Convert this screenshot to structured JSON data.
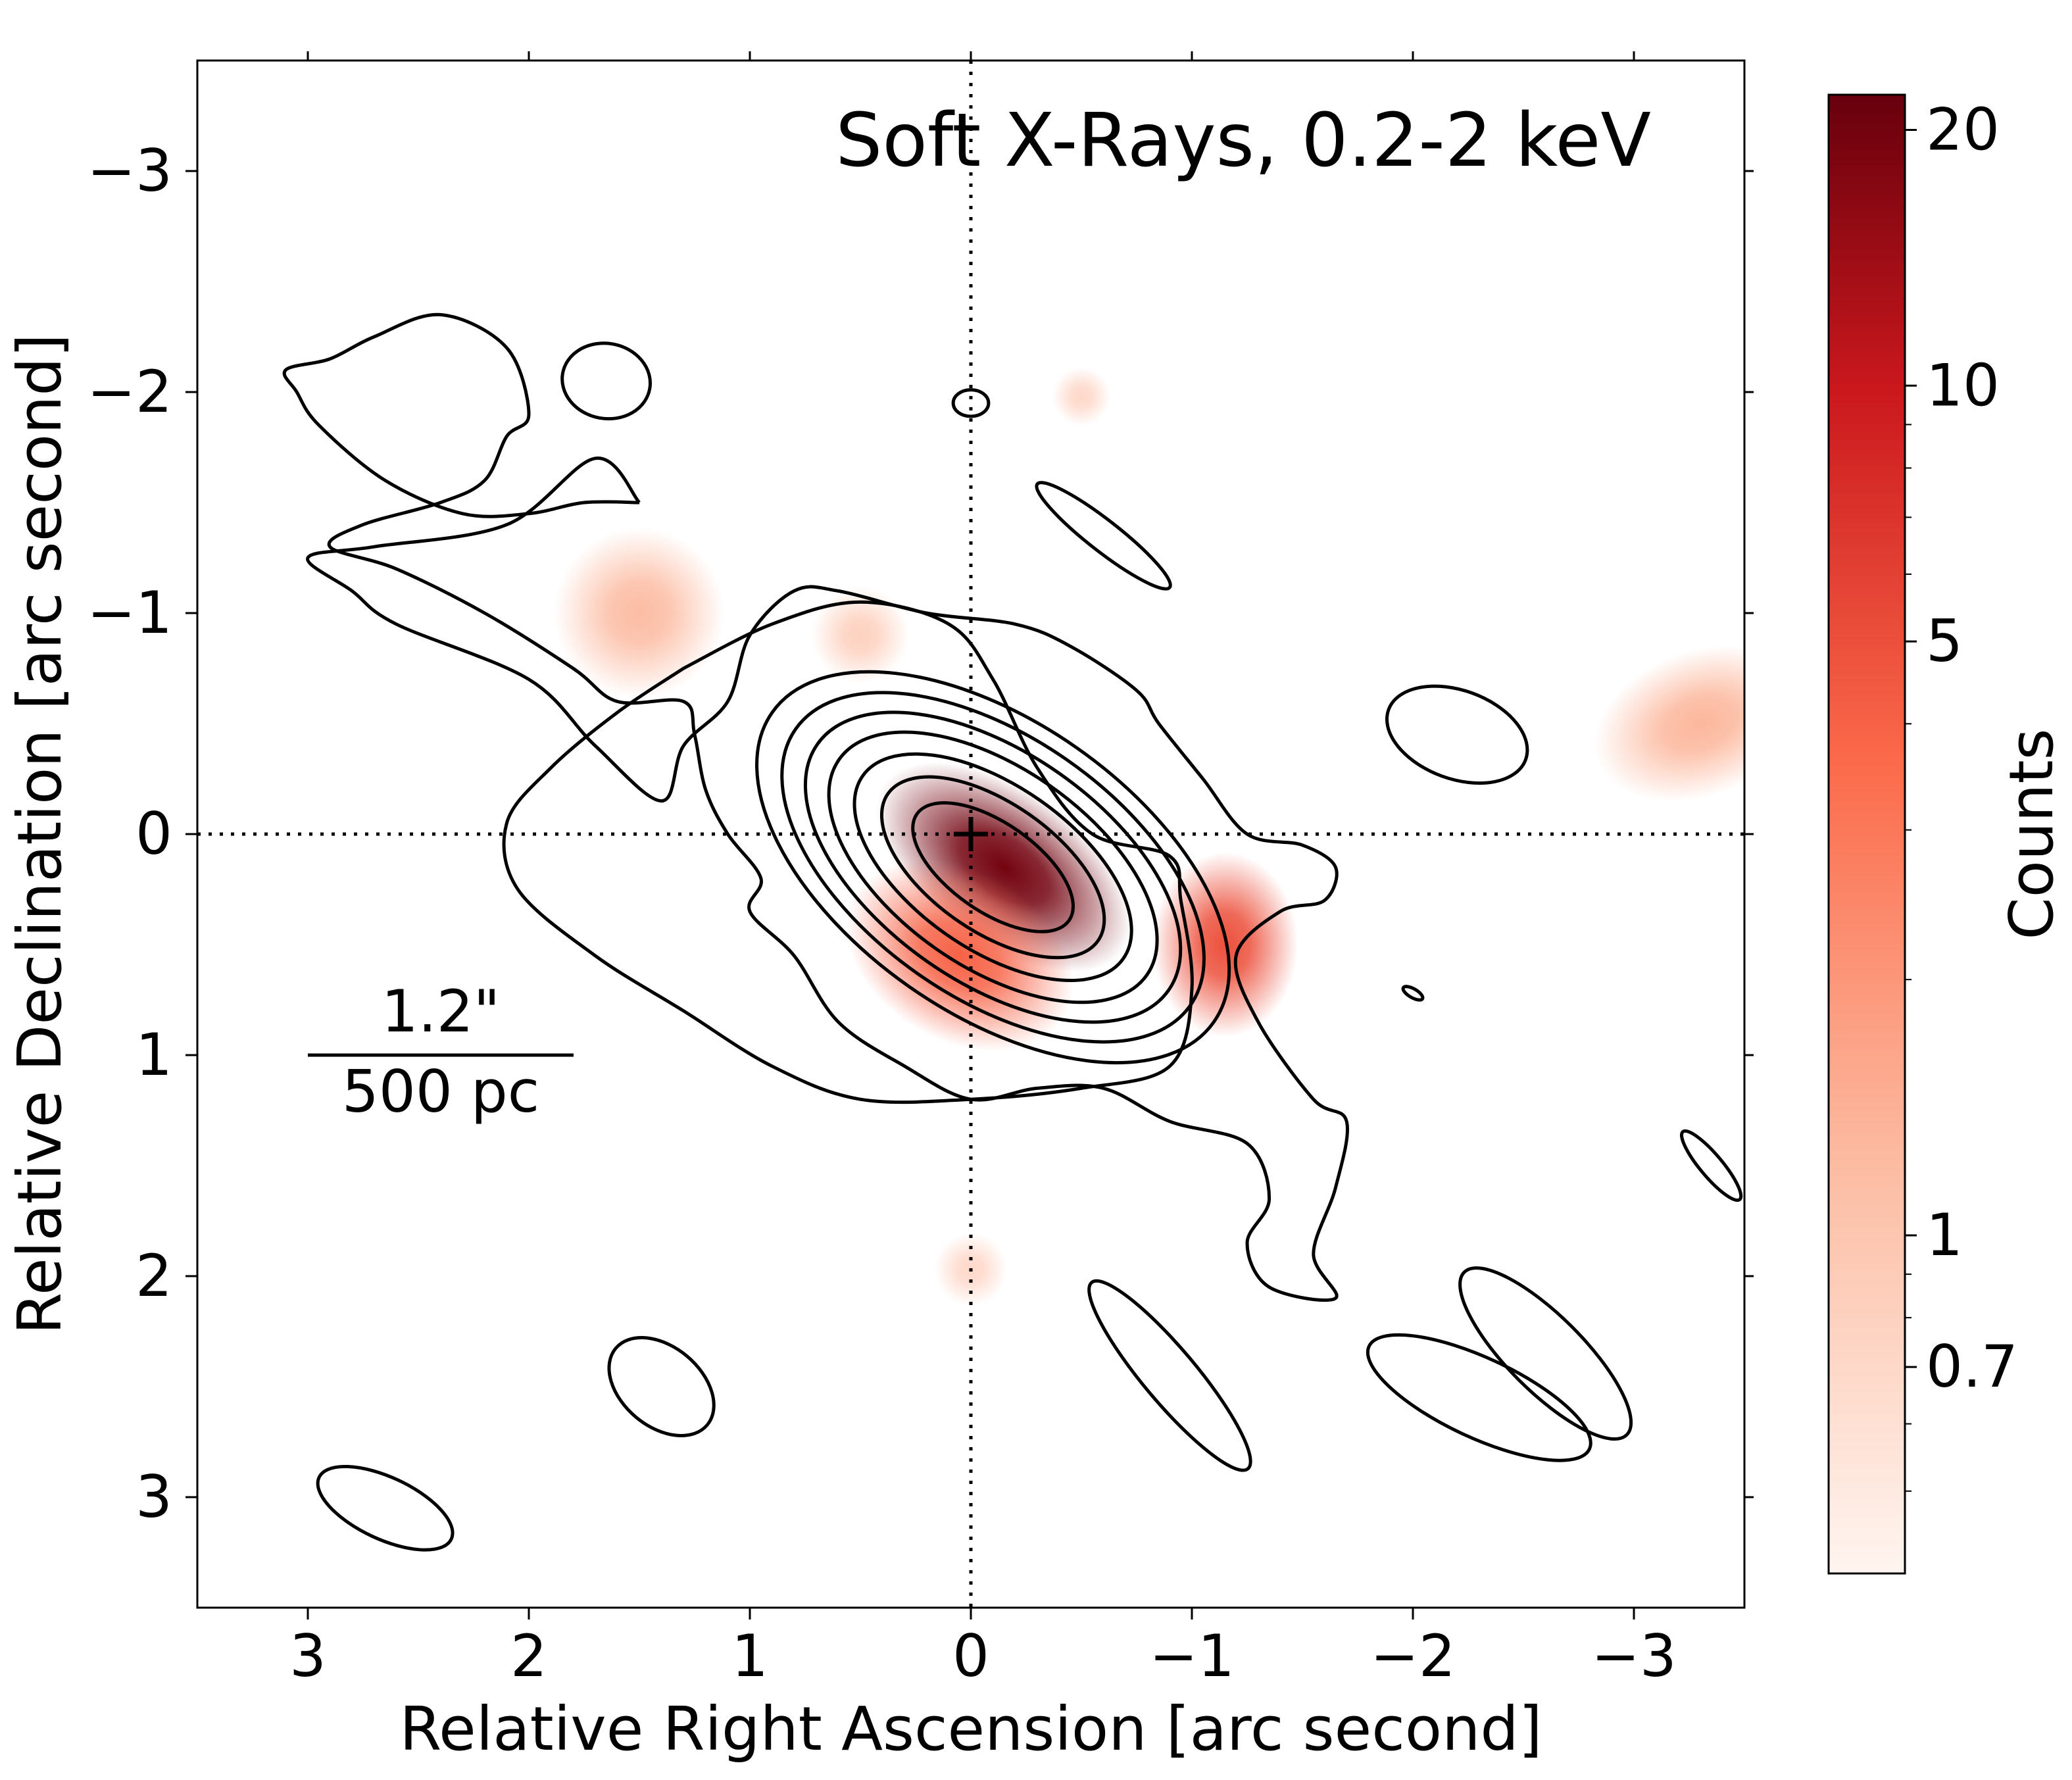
{
  "chart_data": {
    "type": "heatmap",
    "title": "Soft X-Rays, 0.2-2 keV",
    "xlabel": "Relative Right Ascension [arc second]",
    "ylabel": "Relative Declination [arc second]",
    "xlim": [
      3.5,
      -3.5
    ],
    "ylim": [
      3.5,
      -3.5
    ],
    "x_ticks": [
      3,
      2,
      1,
      0,
      -1,
      -2,
      -3
    ],
    "x_tick_labels": [
      "3",
      "2",
      "1",
      "0",
      "−1",
      "−2",
      "−3"
    ],
    "y_ticks": [
      -3,
      -2,
      -1,
      0,
      1,
      2,
      3
    ],
    "y_tick_labels": [
      "−3",
      "−2",
      "−1",
      "0",
      "1",
      "2",
      "3"
    ],
    "crosshair": {
      "x": 0,
      "y": 0,
      "style": "dotted"
    },
    "center_marker": {
      "x": 0,
      "y": 0,
      "symbol": "+"
    },
    "colorbar": {
      "label": "Counts",
      "scale": "log",
      "range": [
        0.4,
        22
      ],
      "ticks": [
        20,
        10,
        5,
        1,
        0.7
      ],
      "tick_labels": [
        "20",
        "10",
        "5",
        "1",
        "0.7"
      ],
      "colormap": "Reds",
      "colors": [
        "#fff5f0",
        "#fcbba1",
        "#fb6a4a",
        "#cb181d",
        "#67000d"
      ]
    },
    "scale_bar": {
      "top": "1.2\"",
      "bottom": "500 pc"
    },
    "emission_blobs": [
      {
        "x": -0.15,
        "y": 0.15,
        "peak_counts": 20,
        "sx": 0.6,
        "sy": 0.32,
        "angle_deg": 35
      },
      {
        "x": 0.05,
        "y": 0.55,
        "peak_counts": 4,
        "sx": 0.5,
        "sy": 0.35,
        "angle_deg": 30
      },
      {
        "x": -1.15,
        "y": 0.5,
        "peak_counts": 5,
        "sx": 0.3,
        "sy": 0.38,
        "angle_deg": 0
      },
      {
        "x": 1.5,
        "y": -1.0,
        "peak_counts": 1.2,
        "sx": 0.35,
        "sy": 0.35,
        "angle_deg": 0
      },
      {
        "x": -3.3,
        "y": -0.5,
        "peak_counts": 1.3,
        "sx": 0.45,
        "sy": 0.3,
        "angle_deg": -20
      },
      {
        "x": -0.5,
        "y": -1.98,
        "peak_counts": 0.7,
        "sx": 0.12,
        "sy": 0.12,
        "angle_deg": 0
      },
      {
        "x": 0.0,
        "y": 1.97,
        "peak_counts": 0.7,
        "sx": 0.15,
        "sy": 0.15,
        "angle_deg": 0
      },
      {
        "x": 0.5,
        "y": -0.9,
        "peak_counts": 0.8,
        "sx": 0.2,
        "sy": 0.2,
        "angle_deg": 0
      }
    ],
    "contours": {
      "core_center": [
        -0.1,
        0.15
      ],
      "core_angle_deg": 35,
      "core_levels": [
        {
          "a": 0.42,
          "b": 0.2
        },
        {
          "a": 0.58,
          "b": 0.29
        },
        {
          "a": 0.72,
          "b": 0.37
        },
        {
          "a": 0.85,
          "b": 0.45
        },
        {
          "a": 0.97,
          "b": 0.52
        },
        {
          "a": 1.09,
          "b": 0.59
        },
        {
          "a": 1.22,
          "b": 0.66
        }
      ],
      "outer_paths": [
        [
          [
            1.5,
            -1.5
          ],
          [
            1.7,
            -1.7
          ],
          [
            2.1,
            -1.4
          ],
          [
            2.7,
            -1.3
          ],
          [
            3.0,
            -1.25
          ],
          [
            2.8,
            -1.1
          ],
          [
            2.6,
            -0.95
          ],
          [
            2.0,
            -0.7
          ],
          [
            1.7,
            -0.4
          ],
          [
            1.4,
            -0.15
          ],
          [
            1.3,
            -0.4
          ],
          [
            1.1,
            -0.6
          ],
          [
            1.0,
            -0.9
          ],
          [
            0.8,
            -1.1
          ],
          [
            0.6,
            -1.1
          ],
          [
            0.2,
            -1.0
          ],
          [
            -0.2,
            -0.95
          ],
          [
            -0.45,
            -0.85
          ],
          [
            -0.75,
            -0.65
          ],
          [
            -0.85,
            -0.5
          ],
          [
            -1.05,
            -0.25
          ],
          [
            -1.25,
            0.0
          ],
          [
            -1.5,
            0.05
          ],
          [
            -1.65,
            0.15
          ],
          [
            -1.6,
            0.3
          ],
          [
            -1.4,
            0.35
          ],
          [
            -1.2,
            0.55
          ],
          [
            -1.3,
            0.85
          ],
          [
            -1.55,
            1.2
          ],
          [
            -1.7,
            1.3
          ],
          [
            -1.65,
            1.6
          ],
          [
            -1.55,
            1.9
          ],
          [
            -1.65,
            2.1
          ],
          [
            -1.35,
            2.05
          ],
          [
            -1.25,
            1.85
          ],
          [
            -1.35,
            1.65
          ],
          [
            -1.25,
            1.4
          ],
          [
            -0.9,
            1.3
          ],
          [
            -0.6,
            1.15
          ],
          [
            -0.3,
            1.15
          ],
          [
            0.0,
            1.2
          ],
          [
            0.3,
            1.05
          ],
          [
            0.6,
            0.85
          ],
          [
            0.8,
            0.55
          ],
          [
            1.0,
            0.35
          ],
          [
            0.95,
            0.2
          ],
          [
            1.1,
            0.0
          ],
          [
            1.2,
            -0.2
          ],
          [
            1.25,
            -0.45
          ],
          [
            1.3,
            -0.6
          ],
          [
            1.6,
            -0.6
          ],
          [
            1.8,
            -0.75
          ],
          [
            2.2,
            -1.0
          ],
          [
            2.6,
            -1.2
          ],
          [
            2.9,
            -1.3
          ],
          [
            2.75,
            -1.4
          ],
          [
            2.4,
            -1.5
          ],
          [
            2.2,
            -1.6
          ],
          [
            2.1,
            -1.8
          ],
          [
            2.0,
            -1.9
          ],
          [
            2.1,
            -2.2
          ],
          [
            2.4,
            -2.35
          ],
          [
            2.7,
            -2.25
          ],
          [
            2.9,
            -2.15
          ],
          [
            3.1,
            -2.1
          ],
          [
            3.05,
            -2.0
          ],
          [
            2.95,
            -1.85
          ],
          [
            2.65,
            -1.6
          ],
          [
            2.3,
            -1.45
          ],
          [
            2.0,
            -1.45
          ],
          [
            1.75,
            -1.5
          ],
          [
            1.5,
            -1.5
          ]
        ],
        [
          [
            1.3,
            -0.75
          ],
          [
            1.6,
            -0.55
          ],
          [
            1.9,
            -0.3
          ],
          [
            2.1,
            -0.05
          ],
          [
            2.05,
            0.25
          ],
          [
            1.7,
            0.55
          ],
          [
            1.3,
            0.8
          ],
          [
            0.9,
            1.05
          ],
          [
            0.5,
            1.2
          ],
          [
            0.0,
            1.2
          ],
          [
            -0.5,
            1.15
          ],
          [
            -0.9,
            1.05
          ],
          [
            -1.0,
            0.7
          ],
          [
            -0.95,
            0.3
          ],
          [
            -0.9,
            0.1
          ],
          [
            -0.55,
            0.0
          ],
          [
            -0.3,
            -0.3
          ],
          [
            -0.1,
            -0.7
          ],
          [
            0.1,
            -0.95
          ],
          [
            0.5,
            -1.05
          ],
          [
            0.9,
            -0.95
          ],
          [
            1.3,
            -0.75
          ]
        ]
      ],
      "islands": [
        {
          "x": 1.65,
          "y": -2.05,
          "rx": 0.2,
          "ry": 0.17,
          "angle_deg": 10
        },
        {
          "x": -2.2,
          "y": -0.45,
          "rx": 0.33,
          "ry": 0.2,
          "angle_deg": 20
        },
        {
          "x": 0.0,
          "y": -1.95,
          "rx": 0.08,
          "ry": 0.06,
          "angle_deg": 0
        },
        {
          "x": -2.0,
          "y": 0.72,
          "rx": 0.05,
          "ry": 0.02,
          "angle_deg": 30
        },
        {
          "x": 1.4,
          "y": 2.5,
          "rx": 0.27,
          "ry": 0.18,
          "angle_deg": 40
        },
        {
          "x": 2.65,
          "y": 3.05,
          "rx": 0.33,
          "ry": 0.14,
          "angle_deg": 25
        },
        {
          "x": -0.6,
          "y": -1.35,
          "rx": 0.38,
          "ry": 0.07,
          "angle_deg": 38
        },
        {
          "x": -0.9,
          "y": 2.45,
          "rx": 0.55,
          "ry": 0.12,
          "angle_deg": 50
        },
        {
          "x": -2.6,
          "y": 2.35,
          "rx": 0.52,
          "ry": 0.17,
          "angle_deg": 45
        },
        {
          "x": -2.3,
          "y": 2.55,
          "rx": 0.55,
          "ry": 0.18,
          "angle_deg": 25
        },
        {
          "x": -3.35,
          "y": 1.5,
          "rx": 0.2,
          "ry": 0.05,
          "angle_deg": 50
        }
      ]
    }
  }
}
